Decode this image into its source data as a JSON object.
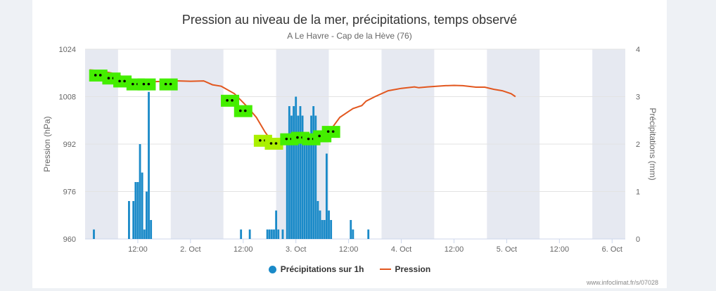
{
  "credit_top": "www.infoclimat.fr/s/07028",
  "credit": "www.infoclimat.fr/s/07028",
  "colors": {
    "precip": "#1a8ac8",
    "pressure": "#e2571f",
    "night_band": "#e6e9f1",
    "weather_icon": "#44ee00",
    "weather_icon_alt": "#aaf000"
  },
  "chart_data": {
    "type": "bar",
    "title": "Pression au niveau de la mer, précipitations, temps observé",
    "subtitle": "A Le Havre - Cap de la Hève (76)",
    "y_left": {
      "label": "Pression (hPa)",
      "min": 960,
      "max": 1024,
      "ticks": [
        "960",
        "976",
        "992",
        "1008",
        "1024"
      ]
    },
    "y_right": {
      "label": "Précipitations (mm)",
      "min": 0,
      "max": 4,
      "ticks": [
        "0",
        "1",
        "2",
        "3",
        "4"
      ]
    },
    "x_ticks": [
      "12:00",
      "2. Oct",
      "12:00",
      "3. Oct",
      "12:00",
      "4. Oct",
      "12:00",
      "5. Oct",
      "12:00",
      "6. Oct"
    ],
    "x_tick_hours": [
      12,
      24,
      36,
      48,
      60,
      72,
      84,
      96,
      108,
      120
    ],
    "x_range_hours": [
      0,
      123
    ],
    "night_bands_hours": [
      [
        0,
        7.5
      ],
      [
        19.5,
        31.5
      ],
      [
        43.5,
        55.5
      ],
      [
        67.5,
        79.5
      ],
      [
        91.5,
        103.5
      ],
      [
        115.5,
        123
      ]
    ],
    "grid": true,
    "legend_position": "bottom",
    "series": [
      {
        "name": "Précipitations sur 1h",
        "type": "bar",
        "axis": "right",
        "points": [
          [
            2,
            0.2
          ],
          [
            10,
            0.8
          ],
          [
            11,
            0.8
          ],
          [
            11.5,
            1.2
          ],
          [
            12,
            1.2
          ],
          [
            12.5,
            2.0
          ],
          [
            13,
            1.4
          ],
          [
            13.5,
            0.2
          ],
          [
            14,
            1.0
          ],
          [
            14.5,
            3.1
          ],
          [
            15,
            0.4
          ],
          [
            35.5,
            0.2
          ],
          [
            37.5,
            0.2
          ],
          [
            41.5,
            0.2
          ],
          [
            42,
            0.2
          ],
          [
            42.5,
            0.2
          ],
          [
            43,
            0.2
          ],
          [
            43.5,
            0.6
          ],
          [
            44,
            0.2
          ],
          [
            45,
            0.2
          ],
          [
            46,
            2.0
          ],
          [
            46.5,
            2.8
          ],
          [
            47,
            2.6
          ],
          [
            47.5,
            2.8
          ],
          [
            48,
            3.0
          ],
          [
            48.5,
            2.6
          ],
          [
            49,
            2.8
          ],
          [
            49.5,
            2.6
          ],
          [
            50,
            2.0
          ],
          [
            50.5,
            2.2
          ],
          [
            51,
            2.0
          ],
          [
            51.5,
            2.6
          ],
          [
            52,
            2.8
          ],
          [
            52.5,
            2.6
          ],
          [
            53,
            0.8
          ],
          [
            53.5,
            0.6
          ],
          [
            54,
            0.4
          ],
          [
            54.5,
            0.4
          ],
          [
            55,
            1.8
          ],
          [
            55.5,
            0.6
          ],
          [
            56,
            0.4
          ],
          [
            60.5,
            0.4
          ],
          [
            61,
            0.2
          ],
          [
            64.5,
            0.2
          ]
        ]
      },
      {
        "name": "Pression",
        "type": "line",
        "axis": "left",
        "points": [
          [
            1,
            1017
          ],
          [
            3,
            1016.8
          ],
          [
            6,
            1016
          ],
          [
            9,
            1014.5
          ],
          [
            12,
            1013.3
          ],
          [
            15,
            1013
          ],
          [
            18,
            1013.2
          ],
          [
            21,
            1013.3
          ],
          [
            24,
            1013.2
          ],
          [
            27,
            1013.3
          ],
          [
            29,
            1012
          ],
          [
            31,
            1011.5
          ],
          [
            34,
            1009
          ],
          [
            37,
            1004.5
          ],
          [
            39,
            1001
          ],
          [
            40,
            998.5
          ],
          [
            41,
            996
          ],
          [
            42,
            994
          ],
          [
            43,
            993
          ],
          [
            45,
            992.5
          ],
          [
            48,
            993.5
          ],
          [
            51,
            994
          ],
          [
            54,
            995
          ],
          [
            56,
            997
          ],
          [
            58,
            1001
          ],
          [
            60,
            1003
          ],
          [
            61,
            1004
          ],
          [
            63,
            1005
          ],
          [
            64,
            1006.5
          ],
          [
            66,
            1008
          ],
          [
            69,
            1010
          ],
          [
            72,
            1010.8
          ],
          [
            75,
            1011.3
          ],
          [
            76,
            1011
          ],
          [
            78,
            1011.3
          ],
          [
            82,
            1011.7
          ],
          [
            84,
            1011.8
          ],
          [
            86,
            1011.7
          ],
          [
            89,
            1011.2
          ],
          [
            91,
            1011.2
          ],
          [
            93,
            1010.5
          ],
          [
            95,
            1010
          ],
          [
            97,
            1009
          ],
          [
            98,
            1008
          ]
        ]
      }
    ],
    "weather_icons_hours_hpa": [
      [
        3,
        1015
      ],
      [
        6,
        1014
      ],
      [
        8.5,
        1013
      ],
      [
        11.5,
        1012
      ],
      [
        14,
        1012
      ],
      [
        19,
        1012
      ],
      [
        33,
        1006.5
      ],
      [
        36,
        1003
      ],
      [
        40.5,
        993
      ],
      [
        43,
        992
      ],
      [
        46.5,
        993.5
      ],
      [
        49,
        994
      ],
      [
        51.5,
        993.5
      ],
      [
        54,
        994.5
      ],
      [
        56,
        996
      ]
    ]
  }
}
